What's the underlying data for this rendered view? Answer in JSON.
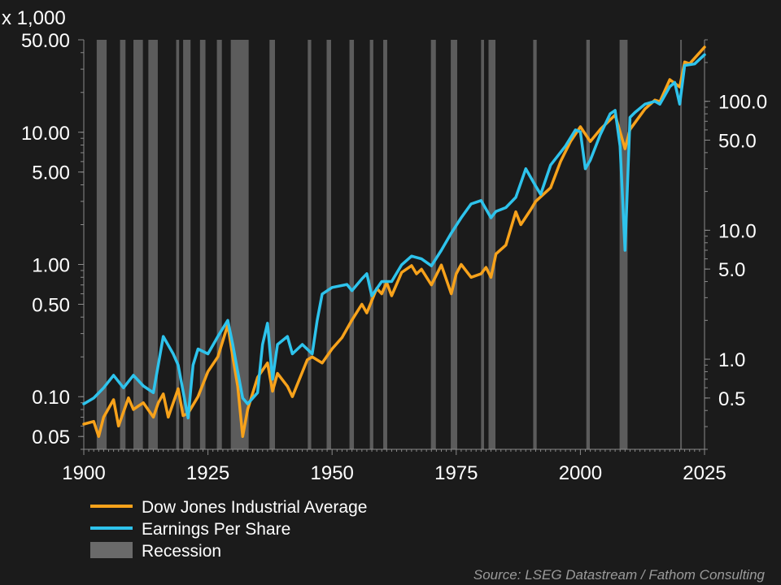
{
  "chart_data": {
    "type": "line",
    "title": "",
    "left_axis_unit": "x 1,000",
    "x_range": [
      1900,
      2025
    ],
    "x_ticks": [
      1900,
      1925,
      1950,
      1975,
      2000,
      2025
    ],
    "left_axis": {
      "scale": "log",
      "range": [
        0.04,
        50
      ],
      "ticks": [
        {
          "v": 50,
          "label": "50.00"
        },
        {
          "v": 10,
          "label": "10.00"
        },
        {
          "v": 5,
          "label": "5.00"
        },
        {
          "v": 1,
          "label": "1.00"
        },
        {
          "v": 0.5,
          "label": "0.50"
        },
        {
          "v": 0.1,
          "label": "0.10"
        },
        {
          "v": 0.05,
          "label": "0.05"
        }
      ]
    },
    "right_axis": {
      "scale": "log",
      "range": [
        0.2,
        300
      ],
      "ticks": [
        {
          "v": 100,
          "label": "100.0"
        },
        {
          "v": 50,
          "label": "50.0"
        },
        {
          "v": 10,
          "label": "10.0"
        },
        {
          "v": 5,
          "label": "5.0"
        },
        {
          "v": 1,
          "label": "1.0"
        },
        {
          "v": 0.5,
          "label": "0.5"
        }
      ]
    },
    "grid": false,
    "legend_position": "bottom-left",
    "series": [
      {
        "name": "Dow Jones Industrial Average",
        "axis": "left",
        "color": "#f7a21b",
        "points": [
          [
            1900,
            0.062
          ],
          [
            1902,
            0.065
          ],
          [
            1903,
            0.05
          ],
          [
            1904,
            0.07
          ],
          [
            1906,
            0.095
          ],
          [
            1907,
            0.06
          ],
          [
            1909,
            0.098
          ],
          [
            1910,
            0.08
          ],
          [
            1911,
            0.085
          ],
          [
            1912,
            0.09
          ],
          [
            1914,
            0.07
          ],
          [
            1915,
            0.09
          ],
          [
            1916,
            0.105
          ],
          [
            1917,
            0.07
          ],
          [
            1919,
            0.115
          ],
          [
            1920,
            0.072
          ],
          [
            1921,
            0.075
          ],
          [
            1923,
            0.1
          ],
          [
            1925,
            0.155
          ],
          [
            1927,
            0.2
          ],
          [
            1929,
            0.35
          ],
          [
            1930,
            0.2
          ],
          [
            1931,
            0.12
          ],
          [
            1932,
            0.05
          ],
          [
            1933,
            0.08
          ],
          [
            1935,
            0.14
          ],
          [
            1937,
            0.18
          ],
          [
            1938,
            0.11
          ],
          [
            1939,
            0.15
          ],
          [
            1941,
            0.12
          ],
          [
            1942,
            0.1
          ],
          [
            1945,
            0.19
          ],
          [
            1946,
            0.2
          ],
          [
            1948,
            0.18
          ],
          [
            1950,
            0.23
          ],
          [
            1952,
            0.28
          ],
          [
            1954,
            0.38
          ],
          [
            1956,
            0.5
          ],
          [
            1957,
            0.43
          ],
          [
            1959,
            0.66
          ],
          [
            1960,
            0.6
          ],
          [
            1961,
            0.73
          ],
          [
            1962,
            0.58
          ],
          [
            1964,
            0.87
          ],
          [
            1966,
            0.98
          ],
          [
            1967,
            0.85
          ],
          [
            1968,
            0.92
          ],
          [
            1970,
            0.7
          ],
          [
            1972,
            0.99
          ],
          [
            1974,
            0.6
          ],
          [
            1975,
            0.85
          ],
          [
            1976,
            1.0
          ],
          [
            1978,
            0.8
          ],
          [
            1980,
            0.85
          ],
          [
            1981,
            0.95
          ],
          [
            1982,
            0.8
          ],
          [
            1983,
            1.2
          ],
          [
            1985,
            1.4
          ],
          [
            1987,
            2.5
          ],
          [
            1988,
            2.0
          ],
          [
            1990,
            2.6
          ],
          [
            1991,
            3.0
          ],
          [
            1994,
            3.8
          ],
          [
            1996,
            6.0
          ],
          [
            1998,
            8.5
          ],
          [
            2000,
            11.0
          ],
          [
            2002,
            8.5
          ],
          [
            2004,
            10.5
          ],
          [
            2007,
            13.5
          ],
          [
            2009,
            7.5
          ],
          [
            2010,
            10.5
          ],
          [
            2013,
            15.0
          ],
          [
            2015,
            17.5
          ],
          [
            2016,
            17.0
          ],
          [
            2018,
            25.0
          ],
          [
            2020,
            22.0
          ],
          [
            2021,
            34.0
          ],
          [
            2022,
            33.0
          ],
          [
            2024,
            40.0
          ],
          [
            2025,
            44.0
          ]
        ]
      },
      {
        "name": "Earnings Per Share",
        "axis": "right",
        "color": "#2ec3ec",
        "points": [
          [
            1900,
            0.45
          ],
          [
            1902,
            0.5
          ],
          [
            1904,
            0.6
          ],
          [
            1906,
            0.75
          ],
          [
            1908,
            0.6
          ],
          [
            1910,
            0.75
          ],
          [
            1912,
            0.62
          ],
          [
            1914,
            0.55
          ],
          [
            1916,
            1.5
          ],
          [
            1918,
            1.1
          ],
          [
            1919,
            0.9
          ],
          [
            1921,
            0.35
          ],
          [
            1922,
            0.9
          ],
          [
            1923,
            1.2
          ],
          [
            1925,
            1.1
          ],
          [
            1927,
            1.5
          ],
          [
            1929,
            2.0
          ],
          [
            1930,
            1.3
          ],
          [
            1931,
            0.8
          ],
          [
            1932,
            0.5
          ],
          [
            1933,
            0.45
          ],
          [
            1935,
            0.55
          ],
          [
            1936,
            1.3
          ],
          [
            1937,
            1.9
          ],
          [
            1938,
            0.7
          ],
          [
            1939,
            1.3
          ],
          [
            1941,
            1.5
          ],
          [
            1942,
            1.1
          ],
          [
            1944,
            1.3
          ],
          [
            1946,
            1.1
          ],
          [
            1947,
            2.0
          ],
          [
            1948,
            3.2
          ],
          [
            1950,
            3.6
          ],
          [
            1953,
            3.8
          ],
          [
            1954,
            3.4
          ],
          [
            1956,
            4.2
          ],
          [
            1957,
            4.6
          ],
          [
            1958,
            3.1
          ],
          [
            1960,
            4.0
          ],
          [
            1962,
            4.0
          ],
          [
            1964,
            5.4
          ],
          [
            1966,
            6.3
          ],
          [
            1968,
            6.0
          ],
          [
            1970,
            5.3
          ],
          [
            1972,
            7.0
          ],
          [
            1974,
            9.5
          ],
          [
            1976,
            12.5
          ],
          [
            1978,
            16.0
          ],
          [
            1980,
            17.0
          ],
          [
            1982,
            12.5
          ],
          [
            1983,
            14.0
          ],
          [
            1985,
            15.0
          ],
          [
            1987,
            18.0
          ],
          [
            1989,
            30.0
          ],
          [
            1991,
            22.0
          ],
          [
            1992,
            19.0
          ],
          [
            1994,
            32.0
          ],
          [
            1997,
            45.0
          ],
          [
            1999,
            60.0
          ],
          [
            2000,
            58.0
          ],
          [
            2001,
            30.0
          ],
          [
            2002,
            35.0
          ],
          [
            2004,
            55.0
          ],
          [
            2006,
            80.0
          ],
          [
            2007,
            85.0
          ],
          [
            2008,
            45.0
          ],
          [
            2009,
            7.0
          ],
          [
            2010,
            75.0
          ],
          [
            2011,
            82.0
          ],
          [
            2013,
            95.0
          ],
          [
            2015,
            100.0
          ],
          [
            2016,
            95.0
          ],
          [
            2018,
            130.0
          ],
          [
            2019,
            140.0
          ],
          [
            2020,
            95.0
          ],
          [
            2021,
            190.0
          ],
          [
            2023,
            195.0
          ],
          [
            2025,
            230.0
          ]
        ]
      }
    ],
    "recessions": [
      [
        1902.6,
        1904.6
      ],
      [
        1907.3,
        1908.4
      ],
      [
        1910.0,
        1911.9
      ],
      [
        1913.0,
        1914.9
      ],
      [
        1918.6,
        1919.2
      ],
      [
        1920.0,
        1921.5
      ],
      [
        1923.4,
        1924.5
      ],
      [
        1926.8,
        1927.8
      ],
      [
        1929.6,
        1933.2
      ],
      [
        1937.4,
        1938.5
      ],
      [
        1945.1,
        1945.8
      ],
      [
        1948.9,
        1949.8
      ],
      [
        1953.5,
        1954.4
      ],
      [
        1957.6,
        1958.3
      ],
      [
        1960.3,
        1961.1
      ],
      [
        1969.9,
        1970.9
      ],
      [
        1973.9,
        1975.2
      ],
      [
        1980.0,
        1980.6
      ],
      [
        1981.5,
        1982.9
      ],
      [
        1990.5,
        1991.2
      ],
      [
        2001.2,
        2001.9
      ],
      [
        2007.9,
        2009.5
      ],
      [
        2020.1,
        2020.4
      ]
    ],
    "legend": [
      {
        "label": "Dow Jones Industrial Average",
        "color": "#f7a21b",
        "kind": "line"
      },
      {
        "label": "Earnings Per Share",
        "color": "#2ec3ec",
        "kind": "line"
      },
      {
        "label": "Recession",
        "color": "#6a6a6a",
        "kind": "box"
      }
    ],
    "source": "Source: LSEG Datastream / Fathom Consulting"
  }
}
